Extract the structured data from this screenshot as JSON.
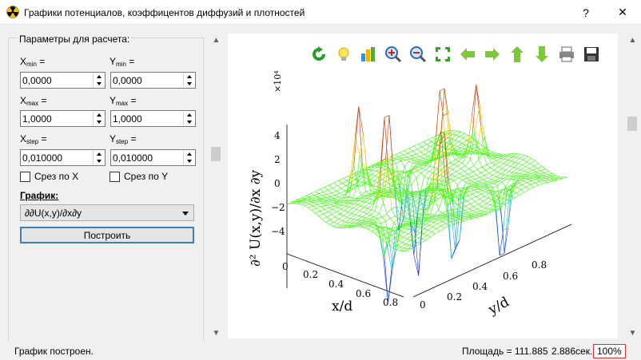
{
  "window": {
    "title": "Графики потенциалов, коэффицентов диффузий и плотностей",
    "help_label": "?",
    "close_label": "✕"
  },
  "params": {
    "group_title": "Параметры для расчета:",
    "xmin_label": "X",
    "xmin_sub": "min",
    "xmin_value": "0,0000",
    "ymin_label": "Y",
    "ymin_sub": "min",
    "ymin_value": "0,0000",
    "xmax_label": "X",
    "xmax_sub": "max",
    "xmax_value": "1,0000",
    "ymax_label": "Y",
    "ymax_sub": "max",
    "ymax_value": "1,0000",
    "xstep_label": "X",
    "xstep_sub": "step",
    "xstep_value": "0,010000",
    "ystep_label": "Y",
    "ystep_sub": "step",
    "ystep_value": "0,010000",
    "eq": "=",
    "cut_x_label": "Срез по X",
    "cut_y_label": "Срез по Y",
    "graph_label": "График:",
    "graph_selected": "∂∂U(x,y)/∂x∂y",
    "build_label": "Построить"
  },
  "toolbar": {
    "icons": [
      "refresh-icon",
      "lightbulb-icon",
      "chart-icon",
      "zoom-in-icon",
      "zoom-out-icon",
      "fit-icon",
      "arrow-left-icon",
      "arrow-right-icon",
      "arrow-up-icon",
      "arrow-down-icon",
      "print-icon",
      "save-icon"
    ]
  },
  "plot": {
    "scale_label": "×10⁴",
    "zlabel": "∂² U(x,y)/∂x ∂y",
    "xlabel": "x/d",
    "ylabel": "y/d",
    "z_ticks": [
      "4",
      "2",
      "0",
      "−2",
      "−4"
    ],
    "x_ticks": [
      "0",
      "0.2",
      "0.4",
      "0.6",
      "0.8"
    ],
    "y_ticks": [
      "0",
      "0.2",
      "0.4",
      "0.6",
      "0.8"
    ]
  },
  "status": {
    "message": "График построен.",
    "area": "Площадь = 111.885",
    "time": "2.886сек.",
    "zoom": "100%"
  },
  "colors": {
    "accent": "#3c7fb1",
    "surface": "#33ff00",
    "peak": "#cc2200",
    "trough": "#0033cc"
  }
}
